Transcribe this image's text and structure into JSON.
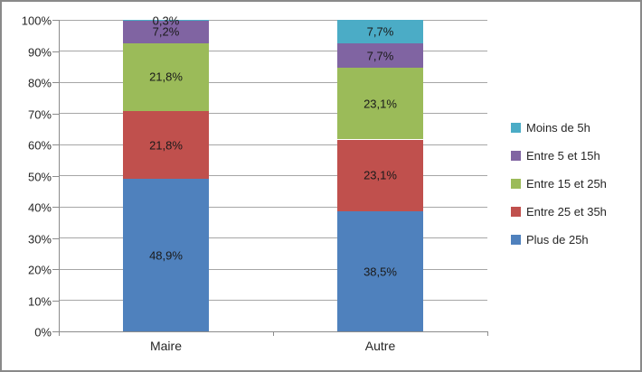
{
  "chart_data": {
    "type": "bar",
    "stacked": true,
    "percent": true,
    "title": "",
    "xlabel": "",
    "ylabel": "",
    "ylim": [
      0,
      100
    ],
    "grid": true,
    "legend_position": "right",
    "categories": [
      "Maire",
      "Autre"
    ],
    "y_ticks": [
      "0%",
      "10%",
      "20%",
      "30%",
      "40%",
      "50%",
      "60%",
      "70%",
      "80%",
      "90%",
      "100%"
    ],
    "series": [
      {
        "name": "Plus de 25h",
        "color": "#4f81bd",
        "values": [
          48.9,
          38.5
        ],
        "labels": [
          "48,9%",
          "38,5%"
        ]
      },
      {
        "name": "Entre 25 et 35h",
        "color": "#c0504d",
        "values": [
          21.8,
          23.1
        ],
        "labels": [
          "21,8%",
          "23,1%"
        ]
      },
      {
        "name": "Entre 15 et 25h",
        "color": "#9bbb59",
        "values": [
          21.8,
          23.1
        ],
        "labels": [
          "21,8%",
          "23,1%"
        ]
      },
      {
        "name": "Entre 5 et 15h",
        "color": "#8064a2",
        "values": [
          7.2,
          7.7
        ],
        "labels": [
          "7,2%",
          "7,7%"
        ]
      },
      {
        "name": "Moins de 5h",
        "color": "#4bacc6",
        "values": [
          0.3,
          7.7
        ],
        "labels": [
          "0,3%",
          "7,7%"
        ]
      }
    ]
  }
}
